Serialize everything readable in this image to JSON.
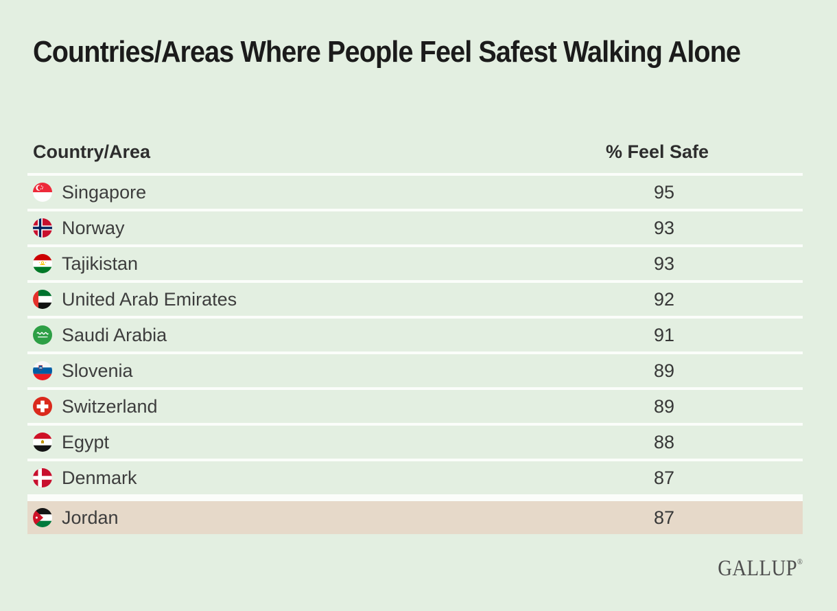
{
  "title": "Countries/Areas Where People Feel Safest Walking Alone",
  "table": {
    "columns": [
      "Country/Area",
      "% Feel Safe"
    ],
    "rows": [
      {
        "country": "Singapore",
        "flag": "singapore",
        "value": "95",
        "highlighted": false
      },
      {
        "country": "Norway",
        "flag": "norway",
        "value": "93",
        "highlighted": false
      },
      {
        "country": "Tajikistan",
        "flag": "tajikistan",
        "value": "93",
        "highlighted": false
      },
      {
        "country": "United Arab Emirates",
        "flag": "united-arab-emirates",
        "value": "92",
        "highlighted": false
      },
      {
        "country": "Saudi Arabia",
        "flag": "saudi-arabia",
        "value": "91",
        "highlighted": false
      },
      {
        "country": "Slovenia",
        "flag": "slovenia",
        "value": "89",
        "highlighted": false
      },
      {
        "country": "Switzerland",
        "flag": "switzerland",
        "value": "89",
        "highlighted": false
      },
      {
        "country": "Egypt",
        "flag": "egypt",
        "value": "88",
        "highlighted": false
      },
      {
        "country": "Denmark",
        "flag": "denmark",
        "value": "87",
        "highlighted": false
      },
      {
        "country": "Jordan",
        "flag": "jordan",
        "value": "87",
        "highlighted": true
      }
    ]
  },
  "chart_data": {
    "type": "table",
    "title": "Countries/Areas Where People Feel Safest Walking Alone",
    "columns": [
      "Country/Area",
      "% Feel Safe"
    ],
    "categories": [
      "Singapore",
      "Norway",
      "Tajikistan",
      "United Arab Emirates",
      "Saudi Arabia",
      "Slovenia",
      "Switzerland",
      "Egypt",
      "Denmark",
      "Jordan"
    ],
    "values": [
      95,
      93,
      93,
      92,
      91,
      89,
      89,
      88,
      87,
      87
    ],
    "highlighted_category": "Jordan",
    "legend_position": "none",
    "grid": "row-separators"
  },
  "branding": {
    "logo_text": "GALLUP",
    "registered_mark": "®"
  },
  "colors": {
    "background": "#e3efe1",
    "highlight_row": "#e6d9c9",
    "separator": "#fbfdfa",
    "title_text": "#1b1b1b",
    "body_text": "#3d3d3d",
    "logo_text": "#4e4e4e"
  }
}
